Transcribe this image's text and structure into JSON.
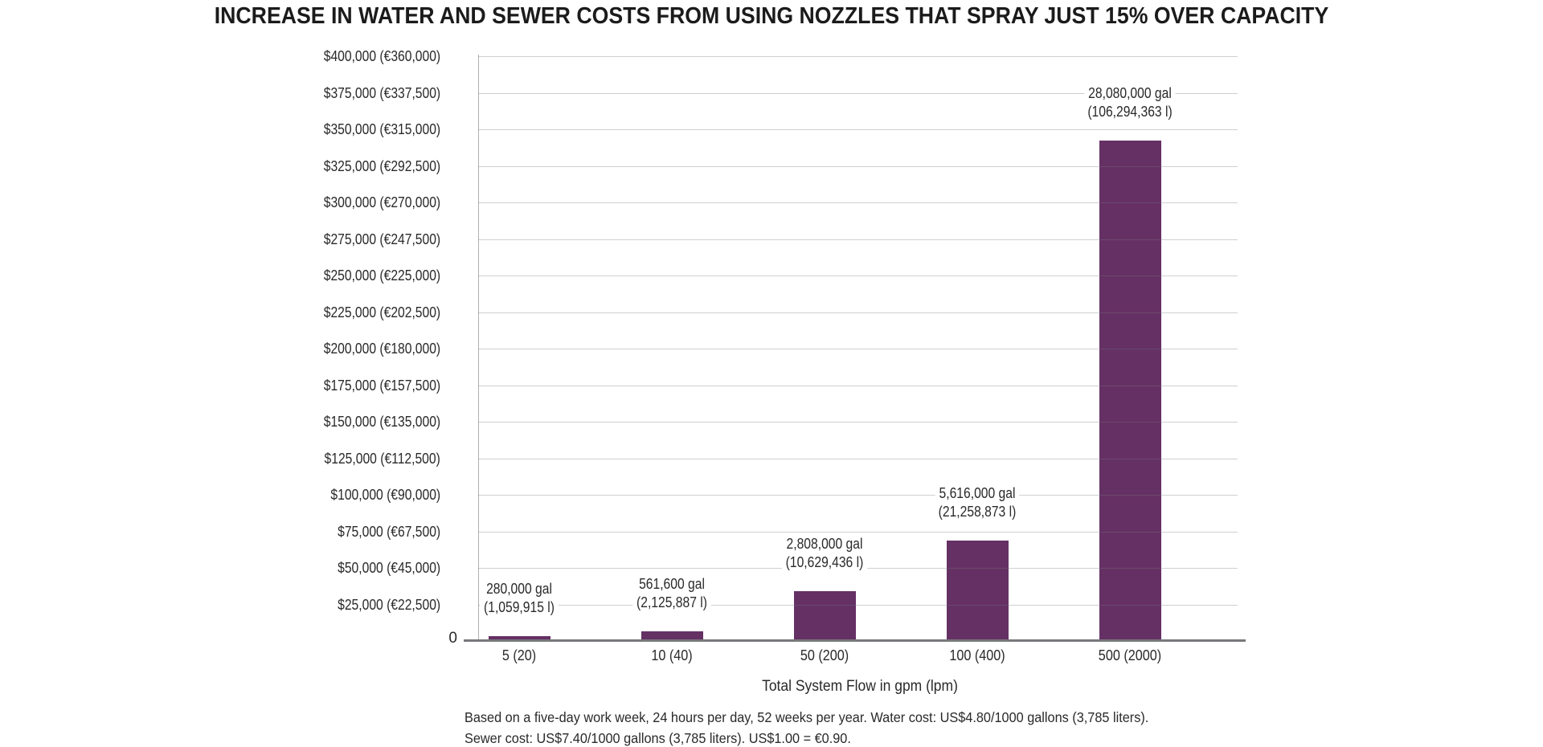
{
  "title": "INCREASE IN WATER AND SEWER COSTS FROM USING NOZZLES THAT SPRAY JUST 15% OVER CAPACITY",
  "chart_data": {
    "type": "bar",
    "title": "INCREASE IN WATER AND SEWER COSTS FROM USING NOZZLES THAT SPRAY JUST 15% OVER CAPACITY",
    "xlabel": "Total System Flow in gpm (lpm)",
    "ylabel": "",
    "ylim": [
      0,
      400000
    ],
    "grid": "horizontal-light-gray",
    "legend": "none",
    "categories": [
      "5 (20)",
      "10 (40)",
      "50 (200)",
      "100 (400)",
      "500 (2000)"
    ],
    "values_usd": [
      3416,
      6852,
      34258,
      68515,
      342576
    ],
    "bar_labels": [
      {
        "line1": "280,000 gal",
        "line2": "(1,059,915 l)"
      },
      {
        "line1": "561,600 gal",
        "line2": "(2,125,887 l)"
      },
      {
        "line1": "2,808,000 gal",
        "line2": "(10,629,436 l)"
      },
      {
        "line1": "5,616,000 gal",
        "line2": "(21,258,873 l)"
      },
      {
        "line1": "28,080,000 gal",
        "line2": "(106,294,363 l)"
      }
    ],
    "y_ticks": [
      {
        "label": "$400,000 (€360,000)",
        "value": 400000
      },
      {
        "label": "$375,000 (€337,500)",
        "value": 375000
      },
      {
        "label": "$350,000 (€315,000)",
        "value": 350000
      },
      {
        "label": "$325,000 (€292,500)",
        "value": 325000
      },
      {
        "label": "$300,000 (€270,000)",
        "value": 300000
      },
      {
        "label": "$275,000 (€247,500)",
        "value": 275000
      },
      {
        "label": "$250,000 (€225,000)",
        "value": 250000
      },
      {
        "label": "$225,000 (€202,500)",
        "value": 225000
      },
      {
        "label": "$200,000 (€180,000)",
        "value": 200000
      },
      {
        "label": "$175,000 (€157,500)",
        "value": 175000
      },
      {
        "label": "$150,000 (€135,000)",
        "value": 150000
      },
      {
        "label": "$125,000 (€112,500)",
        "value": 125000
      },
      {
        "label": "$100,000 (€90,000)",
        "value": 100000
      },
      {
        "label": "$75,000 (€67,500)",
        "value": 75000
      },
      {
        "label": "$50,000 (€45,000)",
        "value": 50000
      },
      {
        "label": "$25,000 (€22,500)",
        "value": 25000
      }
    ],
    "zero_tick_label": "0",
    "colors": {
      "bar": "#653064",
      "gridline": "#d2d3d5",
      "x_axis_line": "#77787b",
      "y_axis_line": "#aeb0b3",
      "text": "#2b292b"
    }
  },
  "footnote": {
    "line1": "Based on a five-day work week, 24 hours per day, 52 weeks per year. Water cost: US$4.80/1000 gallons (3,785 liters).",
    "line2": "Sewer cost: US$7.40/1000 gallons (3,785 liters). US$1.00 = €0.90."
  }
}
